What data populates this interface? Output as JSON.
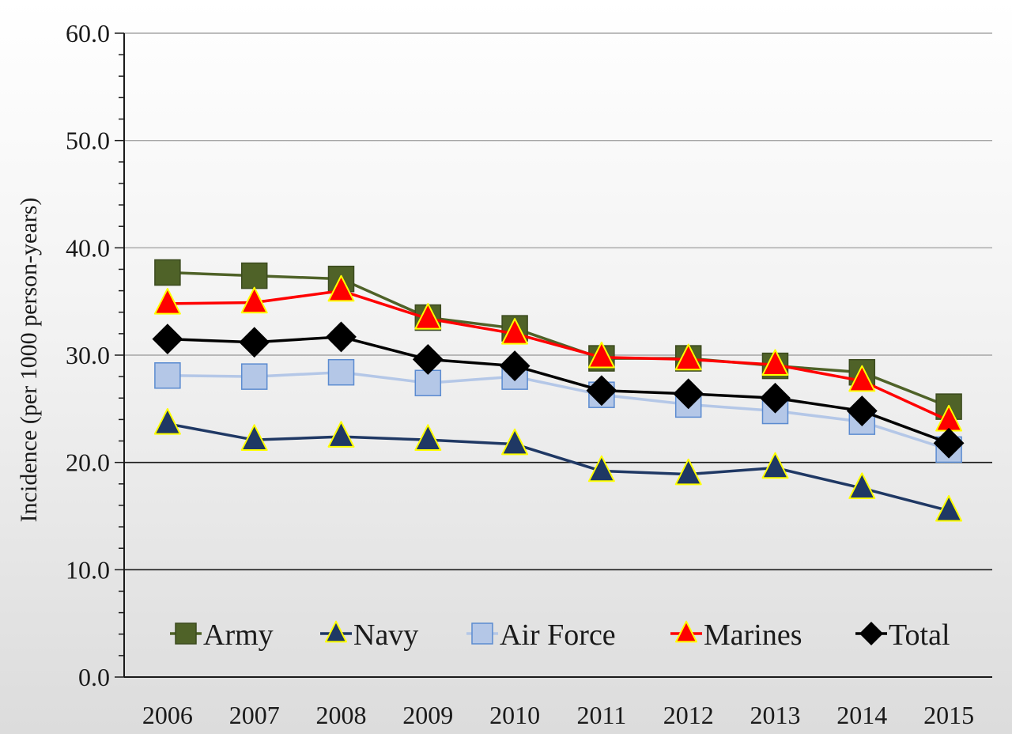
{
  "chart_data": {
    "type": "line",
    "title": "",
    "xlabel": "",
    "ylabel": "Incidence (per 1000 person-years)",
    "x": [
      "2006",
      "2007",
      "2008",
      "2009",
      "2010",
      "2011",
      "2012",
      "2013",
      "2014",
      "2015"
    ],
    "ylim": [
      0,
      60
    ],
    "yticks": [
      "0.0",
      "10.0",
      "20.0",
      "30.0",
      "40.0",
      "50.0",
      "60.0"
    ],
    "grid": true,
    "legend_position": "bottom",
    "series": [
      {
        "name": "Army",
        "marker": "square",
        "color": "#4f6228",
        "marker_fill": "#4f6228",
        "marker_stroke": "#3b4a1e",
        "values": [
          37.7,
          37.4,
          37.1,
          33.5,
          32.5,
          29.7,
          29.7,
          29.0,
          28.4,
          25.2
        ]
      },
      {
        "name": "Navy",
        "marker": "triangle",
        "color": "#1f3864",
        "marker_fill": "#1f3864",
        "marker_stroke": "#ffff00",
        "values": [
          23.6,
          22.1,
          22.4,
          22.1,
          21.7,
          19.2,
          18.9,
          19.5,
          17.6,
          15.5
        ]
      },
      {
        "name": "Air Force",
        "marker": "square",
        "color": "#b4c7e7",
        "marker_fill": "#b4c7e7",
        "marker_stroke": "#5b8bd0",
        "values": [
          28.1,
          28.0,
          28.4,
          27.4,
          28.0,
          26.3,
          25.4,
          24.8,
          23.8,
          21.2
        ]
      },
      {
        "name": "Marines",
        "marker": "triangle",
        "color": "#ff0000",
        "marker_fill": "#ff0000",
        "marker_stroke": "#ffff00",
        "values": [
          34.8,
          34.9,
          36.0,
          33.4,
          32.0,
          29.8,
          29.6,
          29.1,
          27.6,
          23.9
        ]
      },
      {
        "name": "Total",
        "marker": "diamond",
        "color": "#000000",
        "marker_fill": "#000000",
        "marker_stroke": "#000000",
        "values": [
          31.5,
          31.2,
          31.7,
          29.6,
          29.0,
          26.7,
          26.4,
          26.0,
          24.8,
          21.8
        ]
      }
    ]
  }
}
